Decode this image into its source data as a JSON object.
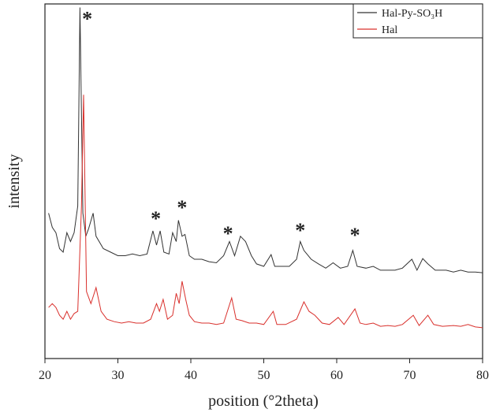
{
  "chart_data": {
    "type": "line",
    "xlabel": "position (°2theta)",
    "ylabel": "intensity",
    "xlim": [
      20,
      80
    ],
    "xticks": [
      20,
      30,
      40,
      50,
      60,
      70,
      80
    ],
    "ylim": [
      0,
      100
    ],
    "legend": "top-right",
    "series": [
      {
        "name": "Hal-Py-SO₃H",
        "color": "#333333",
        "x": [
          20.5,
          21,
          21.5,
          22,
          22.5,
          23,
          23.5,
          24,
          24.5,
          24.8,
          25.2,
          25.6,
          26,
          26.6,
          27,
          28,
          29,
          30,
          31,
          32,
          33,
          34,
          34.8,
          35.3,
          35.8,
          36.3,
          37,
          37.5,
          38,
          38.3,
          38.8,
          39.2,
          39.8,
          40.5,
          41.5,
          42.5,
          43.5,
          44.5,
          45.3,
          46,
          46.8,
          47.5,
          48.3,
          49,
          50,
          51,
          51.5,
          52.5,
          53.5,
          54.5,
          55,
          55.5,
          56.5,
          57.5,
          58.5,
          59.5,
          60.5,
          61.5,
          62.2,
          62.8,
          64,
          65,
          66,
          67,
          68,
          69,
          70.3,
          71,
          71.8,
          72.5,
          73.5,
          75,
          76,
          77,
          78,
          79,
          80
        ],
        "values": [
          41,
          37,
          35.5,
          31,
          30,
          35.5,
          33,
          35.5,
          43,
          99,
          41,
          34.5,
          36.7,
          41,
          34.5,
          31,
          30,
          29,
          29,
          29.5,
          29,
          29.5,
          36,
          32,
          36,
          30,
          29.5,
          35.5,
          33,
          39,
          34.5,
          35,
          29,
          28,
          28,
          27.3,
          27,
          29,
          33,
          29,
          34.5,
          33,
          29,
          26.7,
          26,
          29.3,
          26,
          26,
          26,
          28,
          33,
          30.5,
          28,
          26.7,
          25.5,
          27,
          25.5,
          26,
          30.5,
          26,
          25.5,
          26,
          24.9,
          24.9,
          24.9,
          25.5,
          28,
          24.9,
          28.2,
          26.7,
          24.9,
          24.9,
          24.4,
          24.9,
          24.4,
          24.4,
          24.2
        ]
      },
      {
        "name": "Hal",
        "color": "#d9302c",
        "x": [
          20.5,
          21,
          21.5,
          22,
          22.5,
          23,
          23.5,
          24,
          24.5,
          25,
          25.3,
          25.7,
          26.3,
          27,
          27.7,
          28.5,
          29.5,
          30.5,
          31.5,
          32.5,
          33.5,
          34.5,
          35.3,
          35.7,
          36.2,
          36.8,
          37.5,
          38,
          38.4,
          38.8,
          39.3,
          39.8,
          40.5,
          41.5,
          42.5,
          43.5,
          44.5,
          45.6,
          46.2,
          47,
          48,
          49,
          50,
          51.3,
          51.8,
          53,
          54.5,
          55.5,
          56.2,
          57,
          58,
          59,
          60.2,
          61,
          62.5,
          63.2,
          64,
          65,
          66,
          67,
          68,
          69,
          70.5,
          71.3,
          72.5,
          73.3,
          74.5,
          76,
          77,
          78,
          79,
          80
        ],
        "values": [
          14.4,
          15.5,
          14.4,
          12.2,
          11.1,
          13.3,
          11.1,
          12.7,
          13.3,
          43,
          74.4,
          18.9,
          15.5,
          20,
          13.3,
          11.1,
          10.4,
          10,
          10.4,
          10,
          10,
          11.1,
          15.5,
          13.3,
          16.7,
          11.1,
          12.2,
          18.4,
          15.5,
          21.8,
          16.7,
          12.2,
          10.4,
          10,
          10,
          9.6,
          10,
          17.1,
          11.1,
          10.7,
          10,
          10,
          9.6,
          13.3,
          9.6,
          9.6,
          11.1,
          16,
          13.3,
          12.2,
          10,
          9.6,
          11.6,
          9.6,
          14,
          10,
          9.6,
          10,
          9.1,
          9.3,
          9.1,
          9.6,
          12.2,
          9.3,
          12.2,
          9.6,
          9.1,
          9.3,
          9.1,
          9.6,
          8.9,
          8.7
        ]
      }
    ],
    "annotations": [
      {
        "text": "*",
        "x": 25.8,
        "y": 97
      },
      {
        "text": "*",
        "x": 35.2,
        "y": 40.7
      },
      {
        "text": "*",
        "x": 38.8,
        "y": 43.8
      },
      {
        "text": "*",
        "x": 45.1,
        "y": 36.4
      },
      {
        "text": "*",
        "x": 55,
        "y": 37.3
      },
      {
        "text": "*",
        "x": 62.5,
        "y": 36
      }
    ]
  }
}
